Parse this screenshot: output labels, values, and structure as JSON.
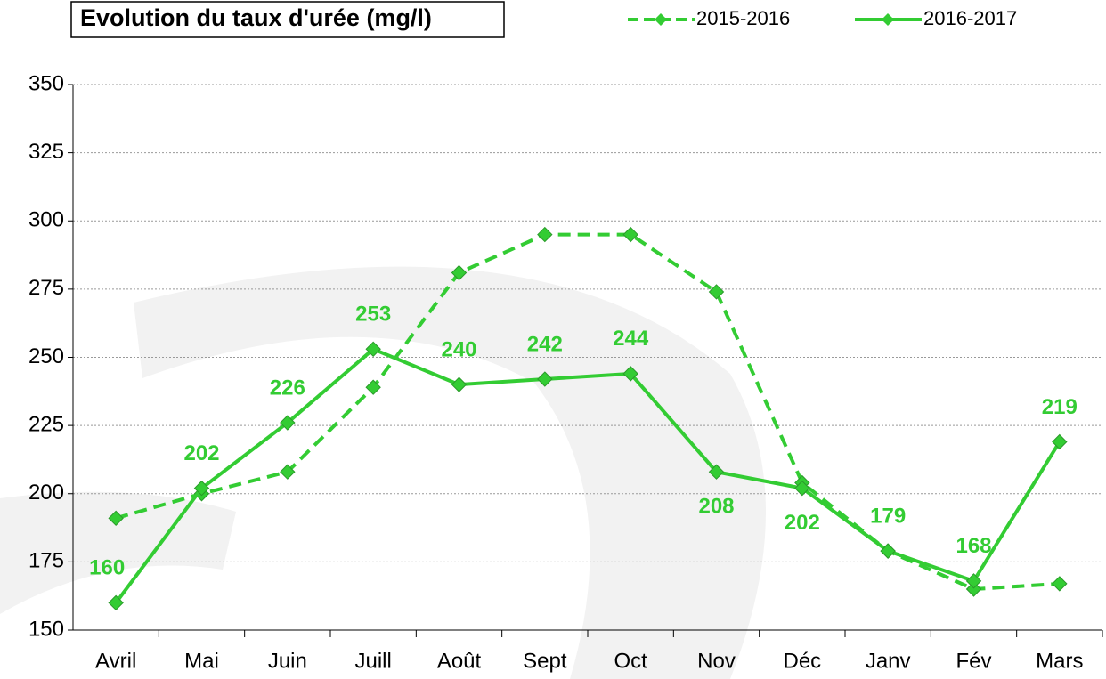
{
  "chart_data": {
    "type": "line",
    "title": "Evolution du taux d'urée (mg/l)",
    "categories": [
      "Avril",
      "Mai",
      "Juin",
      "Juill",
      "Août",
      "Sept",
      "Oct",
      "Nov",
      "Déc",
      "Janv",
      "Fév",
      "Mars"
    ],
    "series": [
      {
        "name": "2015-2016",
        "color": "#33cc33",
        "dashed": true,
        "values": [
          191,
          200,
          208,
          239,
          281,
          295,
          295,
          274,
          204,
          179,
          165,
          167
        ]
      },
      {
        "name": "2016-2017",
        "color": "#33cc33",
        "dashed": false,
        "data_labels": true,
        "values": [
          160,
          202,
          226,
          253,
          240,
          242,
          244,
          208,
          202,
          179,
          168,
          219
        ]
      }
    ],
    "ylim": [
      150,
      350
    ],
    "yticks": [
      150,
      175,
      200,
      225,
      250,
      275,
      300,
      325,
      350
    ],
    "grid": true,
    "legend": "top"
  }
}
